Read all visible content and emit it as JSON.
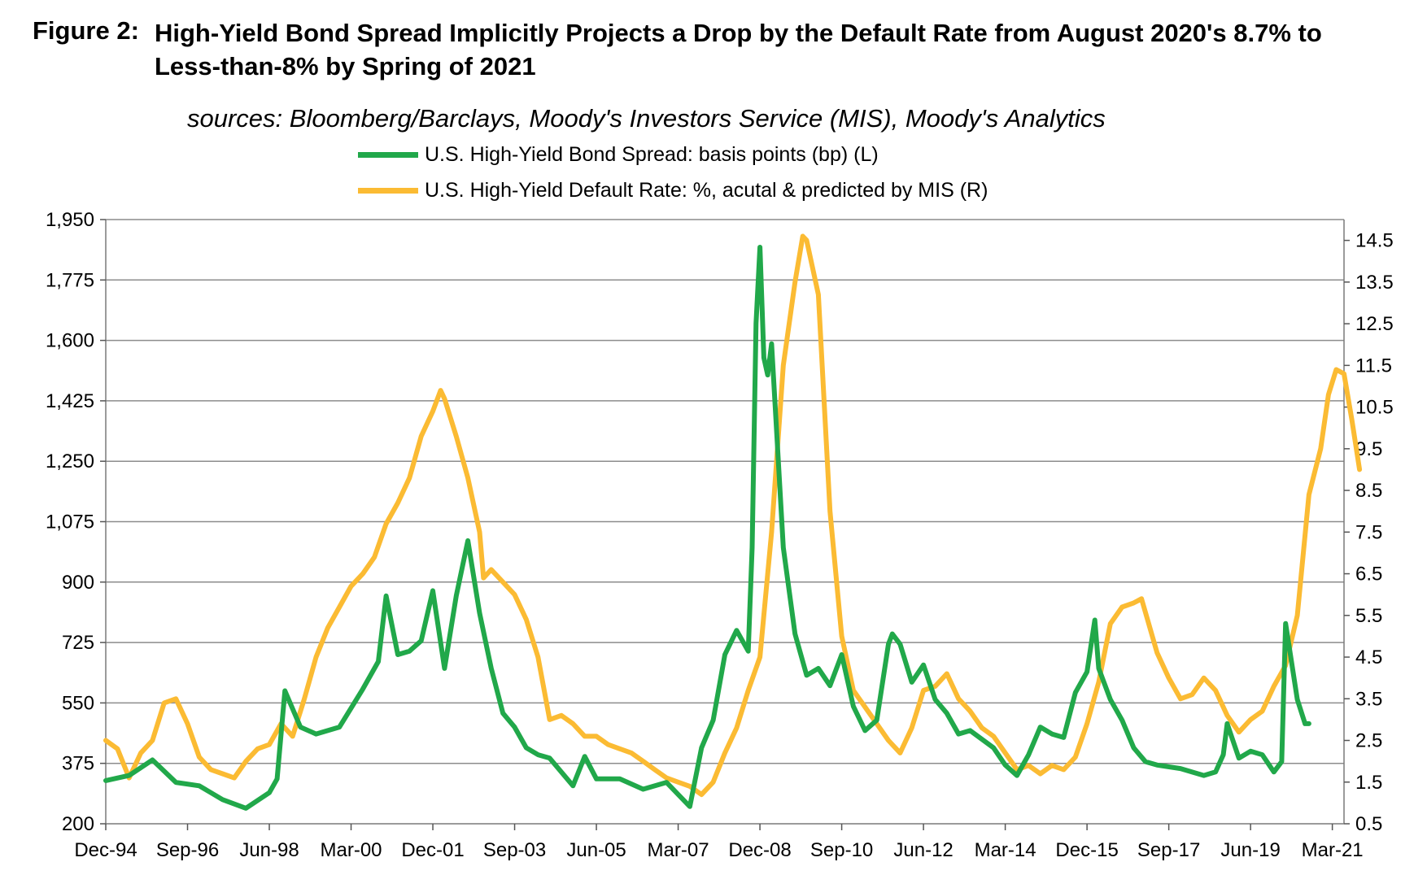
{
  "figure": {
    "label": "Figure 2:",
    "title": "High-Yield Bond Spread Implicitly Projects a Drop by the Default Rate from August 2020's 8.7% to Less-than-8% by Spring of 2021",
    "sources": "sources: Bloomberg/Barclays, Moody's Investors Service (MIS), Moody's Analytics"
  },
  "chart_data": {
    "type": "line",
    "grid": true,
    "legend_position": "top-center",
    "x_tick_labels": [
      "Dec-94",
      "Sep-96",
      "Jun-98",
      "Mar-00",
      "Dec-01",
      "Sep-03",
      "Jun-05",
      "Mar-07",
      "Dec-08",
      "Sep-10",
      "Jun-12",
      "Mar-14",
      "Dec-15",
      "Sep-17",
      "Jun-19",
      "Mar-21"
    ],
    "y_left": {
      "ticks": [
        "200",
        "375",
        "550",
        "725",
        "900",
        "1,075",
        "1,250",
        "1,425",
        "1,600",
        "1,775",
        "1,950"
      ],
      "range": [
        200,
        1950
      ]
    },
    "y_right": {
      "ticks": [
        "0.5",
        "1.5",
        "2.5",
        "3.5",
        "4.5",
        "5.5",
        "6.5",
        "7.5",
        "8.5",
        "9.5",
        "10.5",
        "11.5",
        "12.5",
        "13.5",
        "14.5"
      ],
      "range": [
        0.5,
        15.0
      ]
    },
    "series": [
      {
        "name": "U.S. High-Yield Bond Spread: basis points (bp) (L)",
        "axis": "left",
        "color": "#21A84A",
        "points": [
          [
            "Dec-94",
            325
          ],
          [
            "Jun-95",
            340
          ],
          [
            "Dec-95",
            385
          ],
          [
            "Jun-96",
            320
          ],
          [
            "Dec-96",
            310
          ],
          [
            "Jun-97",
            270
          ],
          [
            "Dec-97",
            245
          ],
          [
            "Jun-98",
            290
          ],
          [
            "Aug-98",
            330
          ],
          [
            "Oct-98",
            585
          ],
          [
            "Feb-99",
            480
          ],
          [
            "Jun-99",
            460
          ],
          [
            "Dec-99",
            480
          ],
          [
            "Jun-00",
            590
          ],
          [
            "Oct-00",
            670
          ],
          [
            "Dec-00",
            860
          ],
          [
            "Mar-01",
            690
          ],
          [
            "Jun-01",
            700
          ],
          [
            "Sep-01",
            730
          ],
          [
            "Dec-01",
            875
          ],
          [
            "Mar-02",
            650
          ],
          [
            "Jun-02",
            860
          ],
          [
            "Sep-02",
            1020
          ],
          [
            "Dec-02",
            810
          ],
          [
            "Mar-03",
            650
          ],
          [
            "Jun-03",
            520
          ],
          [
            "Sep-03",
            480
          ],
          [
            "Dec-03",
            420
          ],
          [
            "Mar-04",
            400
          ],
          [
            "Jun-04",
            390
          ],
          [
            "Dec-04",
            310
          ],
          [
            "Mar-05",
            395
          ],
          [
            "Jun-05",
            330
          ],
          [
            "Dec-05",
            330
          ],
          [
            "Jun-06",
            300
          ],
          [
            "Dec-06",
            320
          ],
          [
            "Jun-07",
            250
          ],
          [
            "Sep-07",
            420
          ],
          [
            "Dec-07",
            500
          ],
          [
            "Mar-08",
            690
          ],
          [
            "Jun-08",
            760
          ],
          [
            "Sep-08",
            700
          ],
          [
            "Oct-08",
            1000
          ],
          [
            "Nov-08",
            1650
          ],
          [
            "Dec-08",
            1870
          ],
          [
            "Jan-09",
            1550
          ],
          [
            "Feb-09",
            1500
          ],
          [
            "Mar-09",
            1590
          ],
          [
            "Jun-09",
            1000
          ],
          [
            "Sep-09",
            750
          ],
          [
            "Dec-09",
            630
          ],
          [
            "Mar-10",
            650
          ],
          [
            "Jun-10",
            600
          ],
          [
            "Sep-10",
            690
          ],
          [
            "Dec-10",
            540
          ],
          [
            "Mar-11",
            470
          ],
          [
            "Jun-11",
            500
          ],
          [
            "Sep-11",
            720
          ],
          [
            "Oct-11",
            750
          ],
          [
            "Dec-11",
            720
          ],
          [
            "Mar-12",
            610
          ],
          [
            "Jun-12",
            660
          ],
          [
            "Sep-12",
            560
          ],
          [
            "Dec-12",
            520
          ],
          [
            "Mar-13",
            460
          ],
          [
            "Jun-13",
            470
          ],
          [
            "Dec-13",
            420
          ],
          [
            "Mar-14",
            370
          ],
          [
            "Jun-14",
            340
          ],
          [
            "Sep-14",
            400
          ],
          [
            "Dec-14",
            480
          ],
          [
            "Mar-15",
            460
          ],
          [
            "Jun-15",
            450
          ],
          [
            "Sep-15",
            580
          ],
          [
            "Dec-15",
            640
          ],
          [
            "Feb-16",
            790
          ],
          [
            "Mar-16",
            650
          ],
          [
            "Jun-16",
            560
          ],
          [
            "Sep-16",
            500
          ],
          [
            "Dec-16",
            420
          ],
          [
            "Mar-17",
            380
          ],
          [
            "Jun-17",
            370
          ],
          [
            "Dec-17",
            360
          ],
          [
            "Jun-18",
            340
          ],
          [
            "Sep-18",
            350
          ],
          [
            "Nov-18",
            400
          ],
          [
            "Dec-18",
            490
          ],
          [
            "Mar-19",
            390
          ],
          [
            "Jun-19",
            410
          ],
          [
            "Sep-19",
            400
          ],
          [
            "Dec-19",
            350
          ],
          [
            "Feb-20",
            380
          ],
          [
            "Mar-20",
            780
          ],
          [
            "Jun-20",
            560
          ],
          [
            "Aug-20",
            490
          ],
          [
            "Sep-20",
            490
          ]
        ]
      },
      {
        "name": "U.S. High-Yield Default Rate: %, acutal & predicted by MIS (R)",
        "axis": "right",
        "color": "#FBBB33",
        "points": [
          [
            "Dec-94",
            2.5
          ],
          [
            "Mar-95",
            2.3
          ],
          [
            "Jun-95",
            1.6
          ],
          [
            "Sep-95",
            2.2
          ],
          [
            "Dec-95",
            2.5
          ],
          [
            "Mar-96",
            3.4
          ],
          [
            "Jun-96",
            3.5
          ],
          [
            "Sep-96",
            2.9
          ],
          [
            "Dec-96",
            2.1
          ],
          [
            "Mar-97",
            1.8
          ],
          [
            "Jun-97",
            1.7
          ],
          [
            "Sep-97",
            1.6
          ],
          [
            "Dec-97",
            2.0
          ],
          [
            "Mar-98",
            2.3
          ],
          [
            "Jun-98",
            2.4
          ],
          [
            "Sep-98",
            2.9
          ],
          [
            "Dec-98",
            2.6
          ],
          [
            "Mar-99",
            3.5
          ],
          [
            "Jun-99",
            4.5
          ],
          [
            "Sep-99",
            5.2
          ],
          [
            "Dec-99",
            5.7
          ],
          [
            "Mar-00",
            6.2
          ],
          [
            "Jun-00",
            6.5
          ],
          [
            "Sep-00",
            6.9
          ],
          [
            "Dec-00",
            7.7
          ],
          [
            "Mar-01",
            8.2
          ],
          [
            "Jun-01",
            8.8
          ],
          [
            "Sep-01",
            9.8
          ],
          [
            "Dec-01",
            10.4
          ],
          [
            "Feb-02",
            10.9
          ],
          [
            "Mar-02",
            10.7
          ],
          [
            "Jun-02",
            9.8
          ],
          [
            "Sep-02",
            8.8
          ],
          [
            "Dec-02",
            7.5
          ],
          [
            "Jan-03",
            6.4
          ],
          [
            "Mar-03",
            6.6
          ],
          [
            "Jun-03",
            6.3
          ],
          [
            "Sep-03",
            6.0
          ],
          [
            "Dec-03",
            5.4
          ],
          [
            "Mar-04",
            4.5
          ],
          [
            "Jun-04",
            3.0
          ],
          [
            "Sep-04",
            3.1
          ],
          [
            "Dec-04",
            2.9
          ],
          [
            "Mar-05",
            2.6
          ],
          [
            "Jun-05",
            2.6
          ],
          [
            "Sep-05",
            2.4
          ],
          [
            "Dec-05",
            2.3
          ],
          [
            "Mar-06",
            2.2
          ],
          [
            "Jun-06",
            2.0
          ],
          [
            "Sep-06",
            1.8
          ],
          [
            "Dec-06",
            1.6
          ],
          [
            "Mar-07",
            1.5
          ],
          [
            "Jun-07",
            1.4
          ],
          [
            "Sep-07",
            1.2
          ],
          [
            "Dec-07",
            1.5
          ],
          [
            "Mar-08",
            2.2
          ],
          [
            "Jun-08",
            2.8
          ],
          [
            "Sep-08",
            3.7
          ],
          [
            "Dec-08",
            4.5
          ],
          [
            "Mar-09",
            7.5
          ],
          [
            "Jun-09",
            11.5
          ],
          [
            "Sep-09",
            13.5
          ],
          [
            "Nov-09",
            14.6
          ],
          [
            "Dec-09",
            14.5
          ],
          [
            "Mar-10",
            13.2
          ],
          [
            "Jun-10",
            8.0
          ],
          [
            "Sep-10",
            5.0
          ],
          [
            "Dec-10",
            3.7
          ],
          [
            "Mar-11",
            3.3
          ],
          [
            "Jun-11",
            2.9
          ],
          [
            "Sep-11",
            2.5
          ],
          [
            "Dec-11",
            2.2
          ],
          [
            "Mar-12",
            2.8
          ],
          [
            "Jun-12",
            3.7
          ],
          [
            "Sep-12",
            3.8
          ],
          [
            "Dec-12",
            4.1
          ],
          [
            "Mar-13",
            3.5
          ],
          [
            "Jun-13",
            3.2
          ],
          [
            "Sep-13",
            2.8
          ],
          [
            "Dec-13",
            2.6
          ],
          [
            "Mar-14",
            2.2
          ],
          [
            "Jun-14",
            1.8
          ],
          [
            "Sep-14",
            1.9
          ],
          [
            "Dec-14",
            1.7
          ],
          [
            "Mar-15",
            1.9
          ],
          [
            "Jun-15",
            1.8
          ],
          [
            "Sep-15",
            2.1
          ],
          [
            "Dec-15",
            2.9
          ],
          [
            "Mar-16",
            3.9
          ],
          [
            "Jun-16",
            5.3
          ],
          [
            "Sep-16",
            5.7
          ],
          [
            "Dec-16",
            5.8
          ],
          [
            "Feb-17",
            5.9
          ],
          [
            "Jun-17",
            4.6
          ],
          [
            "Sep-17",
            4.0
          ],
          [
            "Dec-17",
            3.5
          ],
          [
            "Mar-18",
            3.6
          ],
          [
            "Jun-18",
            4.0
          ],
          [
            "Sep-18",
            3.7
          ],
          [
            "Dec-18",
            3.1
          ],
          [
            "Mar-19",
            2.7
          ],
          [
            "Jun-19",
            3.0
          ],
          [
            "Sep-19",
            3.2
          ],
          [
            "Dec-19",
            3.8
          ],
          [
            "Mar-20",
            4.3
          ],
          [
            "Jun-20",
            5.5
          ],
          [
            "Sep-20",
            8.4
          ],
          [
            "Dec-20",
            9.5
          ],
          [
            "Feb-21",
            10.8
          ],
          [
            "Apr-21",
            11.4
          ],
          [
            "Jun-21",
            11.3
          ],
          [
            "Aug-21",
            10.2
          ],
          [
            "Oct-21",
            9.0
          ]
        ]
      }
    ]
  }
}
